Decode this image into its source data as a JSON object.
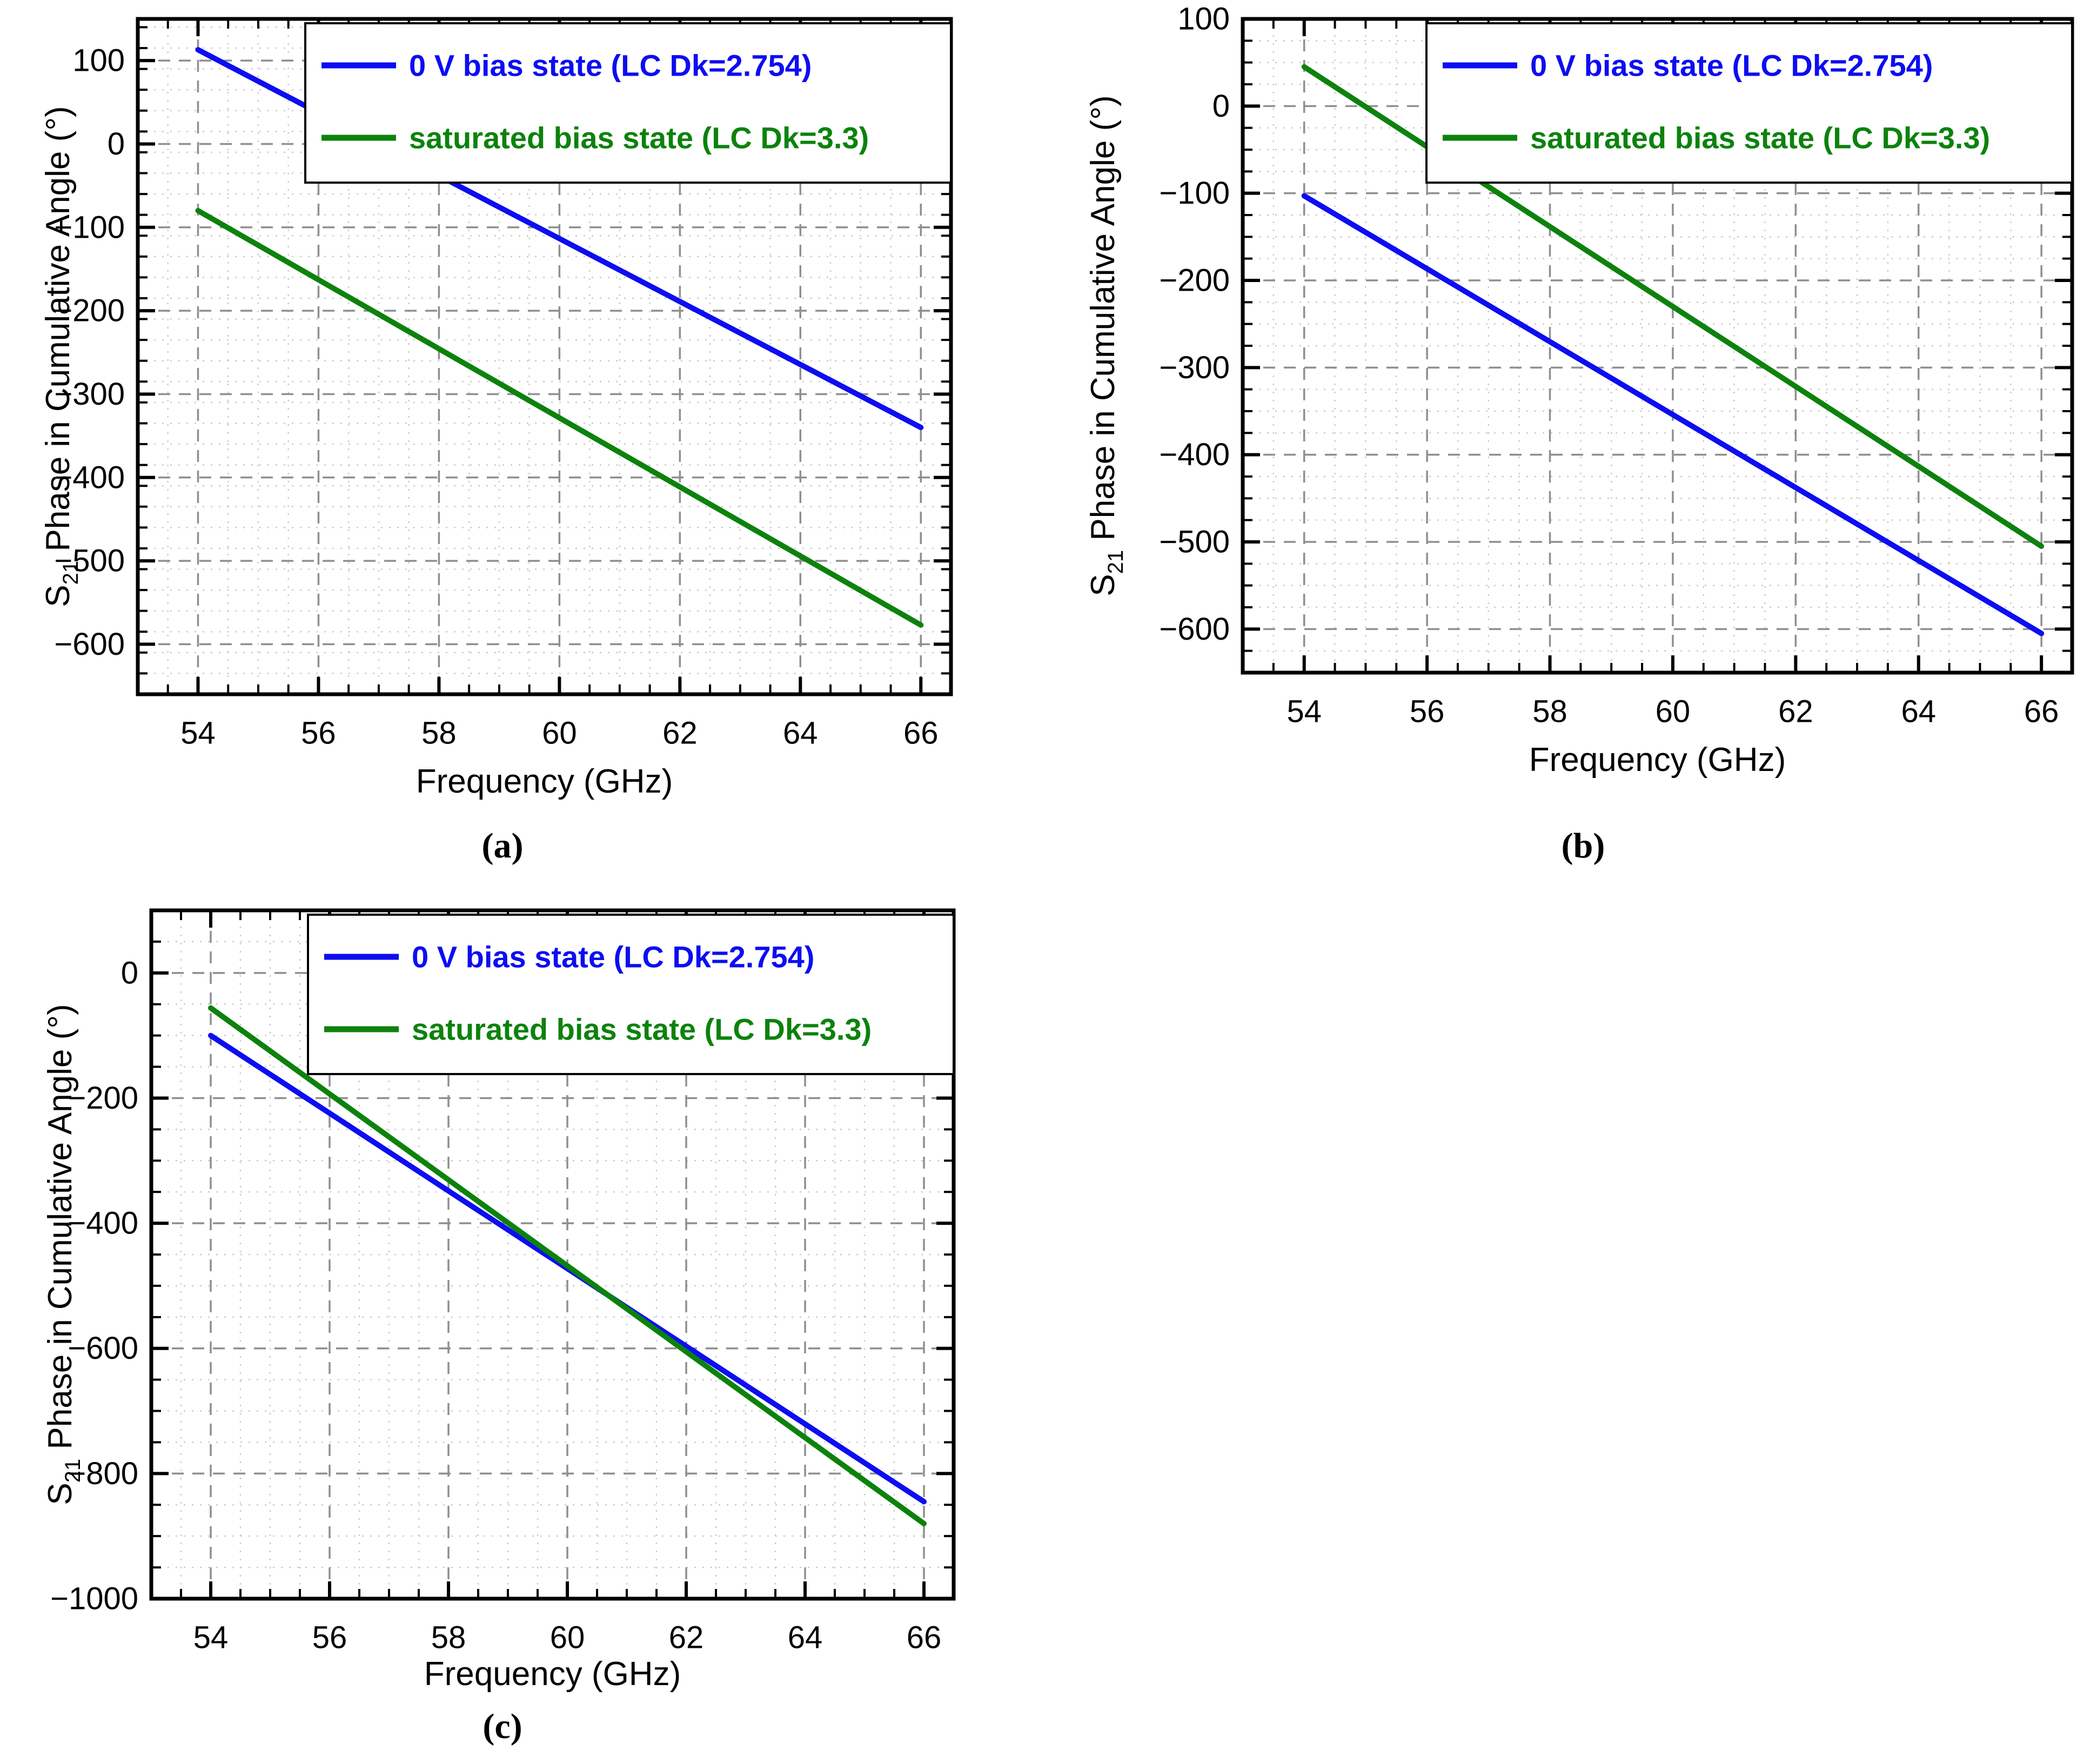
{
  "page": {
    "background": "#ffffff"
  },
  "chart_data": [
    {
      "id": "a",
      "type": "line",
      "caption": "(a)",
      "xlabel": "Frequency (GHz)",
      "ylabel_prefix": "S",
      "ylabel_sub": "21",
      "ylabel_rest": "Phase in Cumulative Angle (°)",
      "xlim": [
        53,
        66.5
      ],
      "ylim": [
        -660,
        150
      ],
      "xticks": [
        54,
        56,
        58,
        60,
        62,
        64,
        66
      ],
      "yticks": [
        100,
        0,
        -100,
        -200,
        -300,
        -400,
        -500,
        -600
      ],
      "x_minor_step": 0.5,
      "y_minor_step": 25,
      "grid": "on",
      "legend_position": "top-right",
      "series": [
        {
          "name": "0 V bias state (LC Dk=2.754)",
          "color": "#0d0df2",
          "x": [
            54,
            66
          ],
          "y": [
            113,
            -340
          ]
        },
        {
          "name": "saturated bias state (LC Dk=3.3)",
          "color": "#0c820c",
          "x": [
            54,
            66
          ],
          "y": [
            -80,
            -577
          ]
        }
      ]
    },
    {
      "id": "b",
      "type": "line",
      "caption": "(b)",
      "xlabel": "Frequency (GHz)",
      "ylabel_prefix": "S",
      "ylabel_sub": "21",
      "ylabel_rest": "Phase in Cumulative Angle (°)",
      "xlim": [
        53,
        66.5
      ],
      "ylim": [
        -650,
        100
      ],
      "xticks": [
        54,
        56,
        58,
        60,
        62,
        64,
        66
      ],
      "yticks": [
        100,
        0,
        -100,
        -200,
        -300,
        -400,
        -500,
        -600
      ],
      "x_minor_step": 0.5,
      "y_minor_step": 25,
      "grid": "on",
      "legend_position": "top-right",
      "series": [
        {
          "name": "0 V bias state (LC Dk=2.754)",
          "color": "#0d0df2",
          "x": [
            54,
            66
          ],
          "y": [
            -103,
            -605
          ]
        },
        {
          "name": "saturated bias state (LC Dk=3.3)",
          "color": "#0c820c",
          "x": [
            54,
            66
          ],
          "y": [
            45,
            -505
          ]
        }
      ]
    },
    {
      "id": "c",
      "type": "line",
      "caption": "(c)",
      "xlabel": "Frequency (GHz)",
      "ylabel_prefix": "S",
      "ylabel_sub": "21",
      "ylabel_rest": "Phase in Cumulative Angle (°)",
      "xlim": [
        53,
        66.5
      ],
      "ylim": [
        -1000,
        100
      ],
      "xticks": [
        54,
        56,
        58,
        60,
        62,
        64,
        66
      ],
      "yticks": [
        0,
        -200,
        -400,
        -600,
        -800,
        -1000
      ],
      "x_minor_step": 0.5,
      "y_minor_step": 50,
      "grid": "on",
      "legend_position": "top-right",
      "series": [
        {
          "name": "0 V bias state (LC Dk=2.754)",
          "color": "#0d0df2",
          "x": [
            54,
            66
          ],
          "y": [
            -100,
            -845
          ]
        },
        {
          "name": "saturated bias state (LC Dk=3.3)",
          "color": "#0c820c",
          "x": [
            54,
            66
          ],
          "y": [
            -56,
            -880
          ]
        }
      ]
    }
  ],
  "style": {
    "axis_color": "#000000",
    "grid_major_color": "#8f8f8f",
    "grid_minor_color": "#cbcbcb",
    "plot_background": "#ffffff",
    "legend_background": "#ffffff",
    "legend_border": "#000000"
  }
}
